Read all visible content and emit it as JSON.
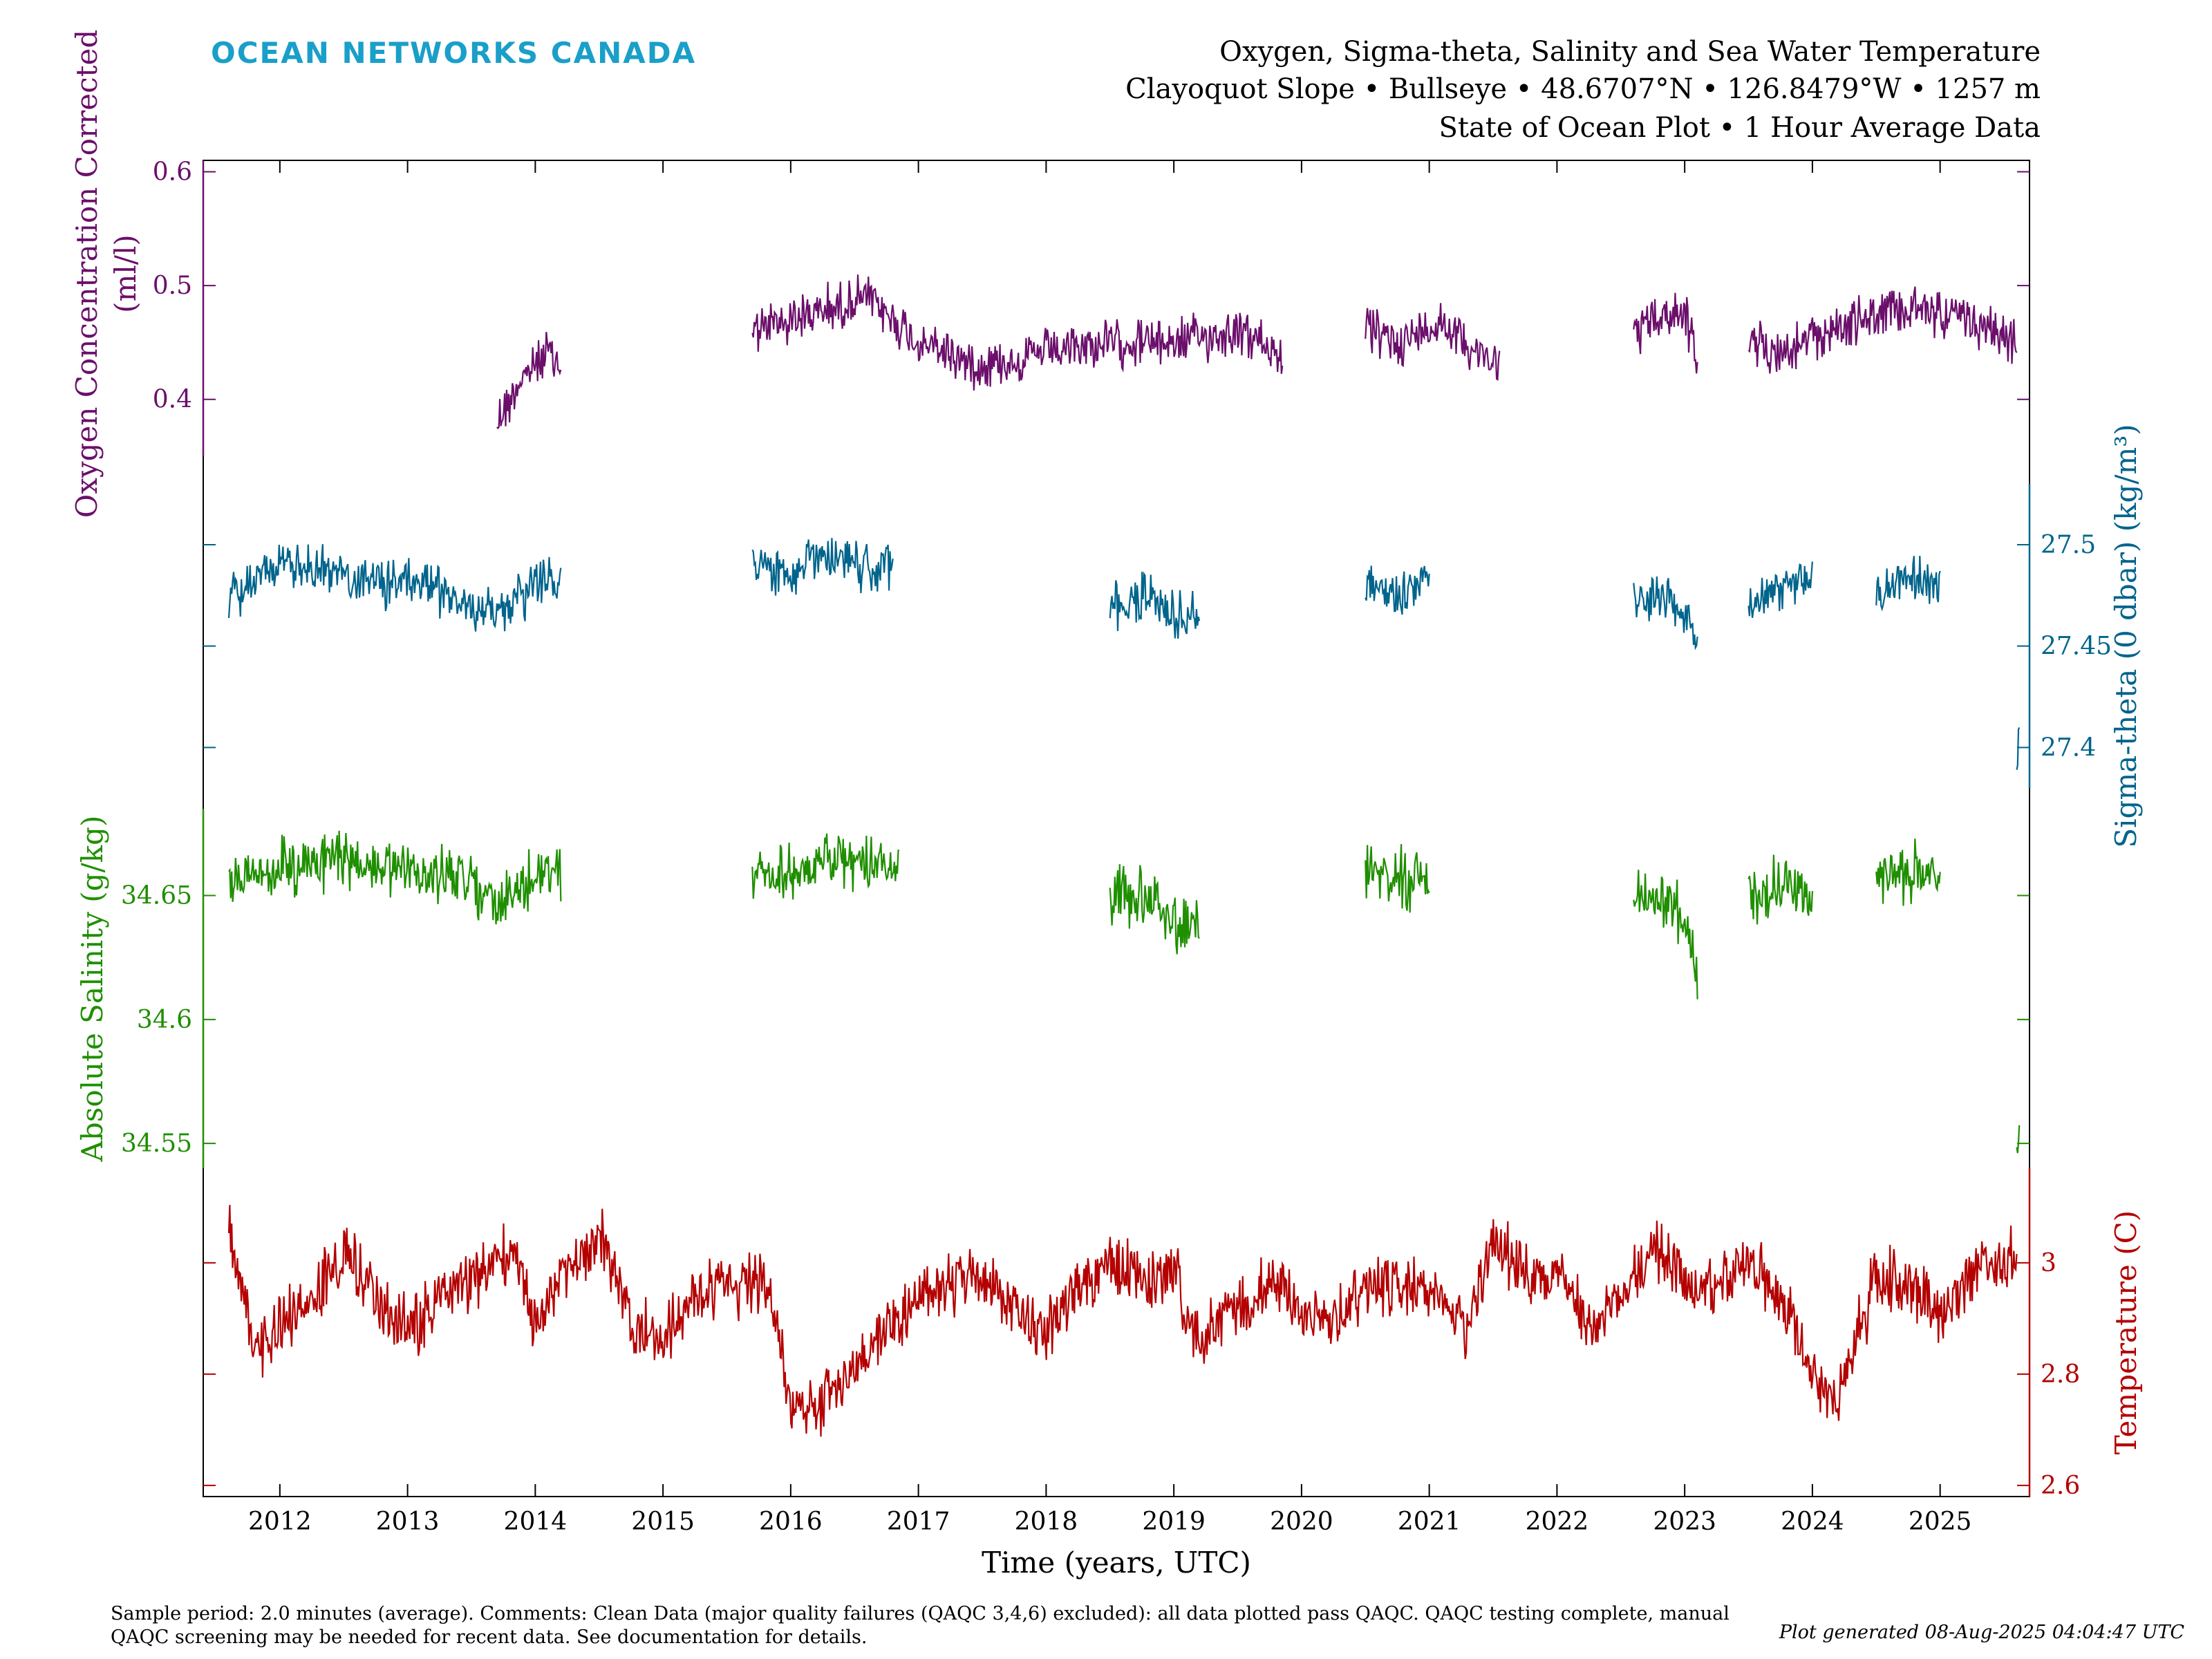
{
  "brand": "OCEAN NETWORKS CANADA",
  "title_lines": [
    "Oxygen, Sigma-theta, Salinity and Sea Water Temperature",
    "Clayoquot Slope • Bullseye • 48.6707°N • 126.8479°W • 1257 m",
    "State of Ocean Plot • 1 Hour Average Data"
  ],
  "footer_left": "Sample period: 2.0 minutes (average). Comments: Clean Data (major quality failures (QAQC 3,4,6) excluded): all data plotted pass QAQC. QAQC testing complete, manual QAQC screening may be needed for recent data. See documentation for details.",
  "footer_right": "Plot generated 08-Aug-2025 04:04:47 UTC",
  "chart_data": {
    "type": "line",
    "xlabel": "Time (years, UTC)",
    "xlim": [
      2011.4,
      2025.7
    ],
    "x_ticks": [
      "2012",
      "2013",
      "2014",
      "2015",
      "2016",
      "2017",
      "2018",
      "2019",
      "2020",
      "2021",
      "2022",
      "2023",
      "2024",
      "2025"
    ],
    "grid": false,
    "series": [
      {
        "name": "Oxygen Concentration Corrected",
        "axis_label_lines": [
          "Oxygen Concentration Corrected",
          "(ml/l)"
        ],
        "axis_side": "left",
        "color": "#6b0f6b",
        "ticks": [
          "0.4",
          "0.5",
          "0.6"
        ],
        "tick_values": [
          0.4,
          0.5,
          0.6
        ],
        "range_shown": [
          0.35,
          0.61
        ],
        "segments": [
          {
            "x": [
              2013.7,
              2013.9,
              2014.1,
              2014.2
            ],
            "y": [
              0.38,
              0.42,
              0.44,
              0.43
            ]
          },
          {
            "x": [
              2015.7,
              2016.0,
              2016.3,
              2016.6,
              2017.0,
              2017.5,
              2018.0,
              2018.5,
              2019.0,
              2019.5,
              2019.85
            ],
            "y": [
              0.46,
              0.47,
              0.48,
              0.49,
              0.45,
              0.43,
              0.44,
              0.45,
              0.45,
              0.46,
              0.44
            ]
          },
          {
            "x": [
              2020.5,
              2020.8,
              2021.1,
              2021.4,
              2021.55
            ],
            "y": [
              0.46,
              0.45,
              0.47,
              0.44,
              0.43
            ]
          },
          {
            "x": [
              2022.6,
              2022.8,
              2023.0,
              2023.1
            ],
            "y": [
              0.46,
              0.47,
              0.48,
              0.43
            ]
          },
          {
            "x": [
              2023.5,
              2023.8,
              2024.1,
              2024.4,
              2024.8,
              2025.2,
              2025.6
            ],
            "y": [
              0.45,
              0.44,
              0.46,
              0.47,
              0.48,
              0.47,
              0.45
            ]
          }
        ]
      },
      {
        "name": "Sigma-theta (0 dbar)",
        "axis_label": "Sigma-theta (0 dbar) (kg/m³)",
        "axis_side": "right",
        "color": "#00648c",
        "ticks": [
          "27.4",
          "27.45",
          "27.5"
        ],
        "tick_values": [
          27.4,
          27.45,
          27.5
        ],
        "range_shown": [
          27.38,
          27.53
        ],
        "segments": [
          {
            "x": [
              2011.6,
              2012.0,
              2012.5,
              2013.0,
              2013.3,
              2013.7,
              2014.0,
              2014.2
            ],
            "y": [
              27.475,
              27.49,
              27.485,
              27.48,
              27.475,
              27.465,
              27.48,
              27.485
            ]
          },
          {
            "x": [
              2015.7,
              2016.0,
              2016.2,
              2016.5,
              2016.8
            ],
            "y": [
              27.49,
              27.485,
              27.495,
              27.49,
              27.49
            ]
          },
          {
            "x": [
              2018.5,
              2018.8,
              2019.0,
              2019.2
            ],
            "y": [
              27.47,
              27.475,
              27.465,
              27.465
            ]
          },
          {
            "x": [
              2020.5,
              2020.7,
              2021.0
            ],
            "y": [
              27.48,
              27.475,
              27.48
            ]
          },
          {
            "x": [
              2022.6,
              2022.9,
              2023.1
            ],
            "y": [
              27.47,
              27.475,
              27.45
            ]
          },
          {
            "x": [
              2023.5,
              2023.8,
              2024.0
            ],
            "y": [
              27.47,
              27.48,
              27.48
            ]
          },
          {
            "x": [
              2024.5,
              2024.8,
              2025.0
            ],
            "y": [
              27.478,
              27.482,
              27.48
            ]
          },
          {
            "x": [
              2025.6,
              2025.62
            ],
            "y": [
              27.39,
              27.41
            ]
          }
        ]
      },
      {
        "name": "Absolute Salinity",
        "axis_label": "Absolute Salinity (g/kg)",
        "axis_side": "left",
        "color": "#1f8f00",
        "ticks": [
          "34.55",
          "34.6",
          "34.65"
        ],
        "tick_values": [
          34.55,
          34.6,
          34.65
        ],
        "range_shown": [
          34.54,
          34.685
        ],
        "segments": [
          {
            "x": [
              2011.6,
              2012.0,
              2012.5,
              2013.0,
              2013.4,
              2013.7,
              2014.0,
              2014.2
            ],
            "y": [
              34.655,
              34.662,
              34.665,
              34.66,
              34.657,
              34.645,
              34.658,
              34.66
            ]
          },
          {
            "x": [
              2015.7,
              2016.0,
              2016.3,
              2016.6,
              2016.85
            ],
            "y": [
              34.66,
              34.66,
              34.665,
              34.662,
              34.663
            ]
          },
          {
            "x": [
              2018.5,
              2018.8,
              2019.0,
              2019.2
            ],
            "y": [
              34.65,
              34.648,
              34.64,
              34.64
            ]
          },
          {
            "x": [
              2020.5,
              2020.7,
              2021.0
            ],
            "y": [
              34.66,
              34.658,
              34.655
            ]
          },
          {
            "x": [
              2022.6,
              2022.9,
              2023.1
            ],
            "y": [
              34.652,
              34.648,
              34.62
            ]
          },
          {
            "x": [
              2023.5,
              2023.8,
              2024.0
            ],
            "y": [
              34.65,
              34.655,
              34.645
            ]
          },
          {
            "x": [
              2024.5,
              2024.8,
              2025.0
            ],
            "y": [
              34.657,
              34.66,
              34.655
            ]
          },
          {
            "x": [
              2025.6,
              2025.62
            ],
            "y": [
              34.55,
              34.56
            ]
          }
        ]
      },
      {
        "name": "Temperature",
        "axis_label": "Temperature (C)",
        "axis_side": "right",
        "color": "#b40000",
        "ticks": [
          "2.6",
          "2.8",
          "3"
        ],
        "tick_values": [
          2.6,
          2.8,
          3.0
        ],
        "range_shown": [
          2.58,
          3.17
        ],
        "segments": [
          {
            "x": [
              2011.6,
              2011.8,
              2012.0,
              2012.3,
              2012.5,
              2012.8,
              2013.0,
              2013.3,
              2013.5,
              2013.8,
              2014.0,
              2014.3,
              2014.5,
              2014.8,
              2015.0,
              2015.3,
              2015.5,
              2015.8,
              2016.0,
              2016.2,
              2016.4,
              2016.7,
              2017.0,
              2017.3,
              2017.5,
              2017.8,
              2018.0,
              2018.3,
              2018.5,
              2018.8,
              2019.0,
              2019.2,
              2019.5,
              2019.8,
              2020.0,
              2020.3,
              2020.5,
              2020.8,
              2021.0,
              2021.3,
              2021.5,
              2021.8,
              2022.0,
              2022.3,
              2022.5,
              2022.8,
              2023.0,
              2023.2,
              2023.5,
              2023.8,
              2024.0,
              2024.2,
              2024.5,
              2024.8,
              2025.0,
              2025.3,
              2025.6
            ],
            "y": [
              3.05,
              2.85,
              2.88,
              2.95,
              3.02,
              2.92,
              2.88,
              2.94,
              2.97,
              3.02,
              2.9,
              3.0,
              3.05,
              2.88,
              2.87,
              2.95,
              2.95,
              2.98,
              2.75,
              2.74,
              2.78,
              2.88,
              2.92,
              2.96,
              2.98,
              2.9,
              2.88,
              2.98,
              3.0,
              2.96,
              2.98,
              2.85,
              2.92,
              2.96,
              2.9,
              2.9,
              2.96,
              2.96,
              2.94,
              2.88,
              3.05,
              2.96,
              2.98,
              2.87,
              2.96,
              3.02,
              2.98,
              2.95,
              3.0,
              2.92,
              2.8,
              2.75,
              2.98,
              2.95,
              2.9,
              3.0,
              3.02
            ]
          }
        ]
      }
    ]
  }
}
